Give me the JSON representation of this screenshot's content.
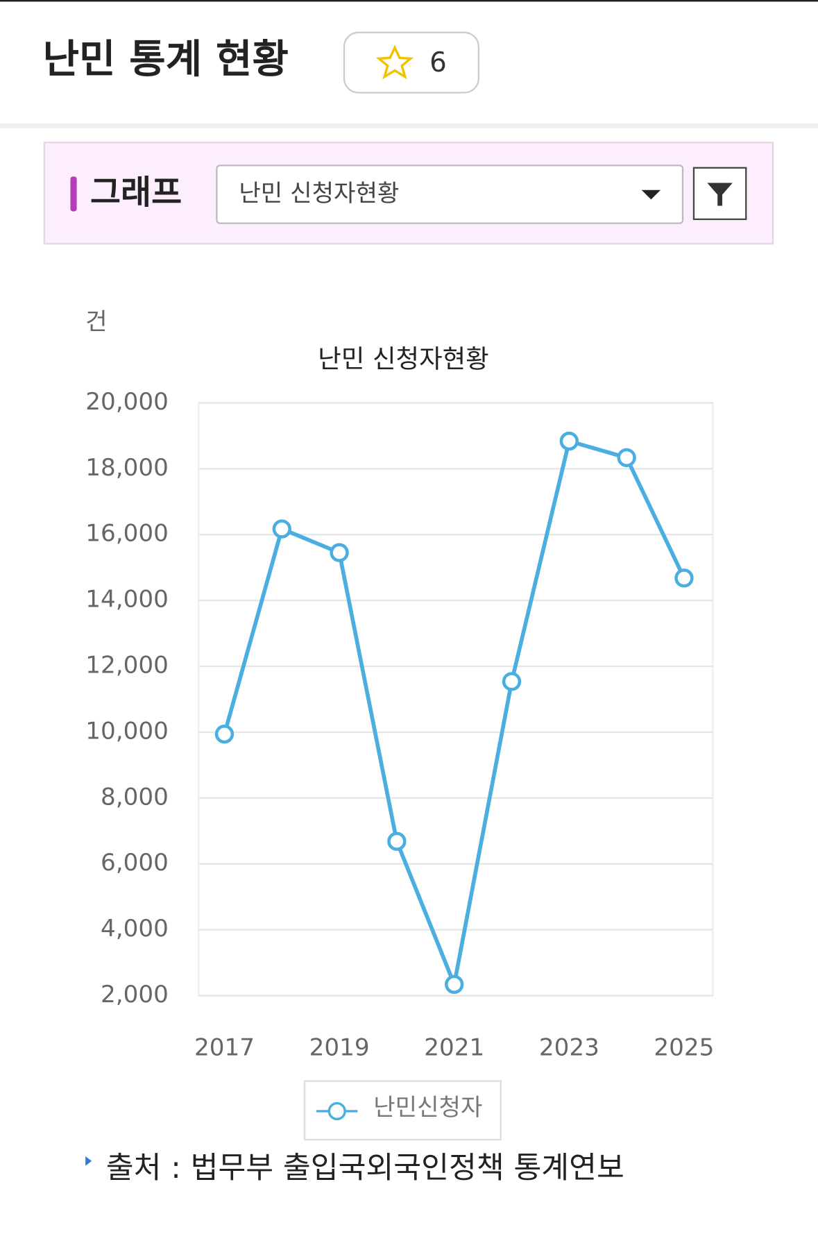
{
  "header": {
    "title": "난민 통계 현황",
    "favorite_count": "6"
  },
  "panel": {
    "label": "그래프",
    "dropdown": "난민 신청자현황"
  },
  "chart_data": {
    "type": "line",
    "unit": "건",
    "title": "난민 신청자현황",
    "x": [
      2017,
      2018,
      2019,
      2020,
      2021,
      2022,
      2023,
      2024,
      2025
    ],
    "series": [
      {
        "name": "난민신청자",
        "color": "#4aaee0",
        "values": [
          9942,
          16173,
          15452,
          6684,
          2341,
          11539,
          18838,
          18336,
          14680
        ]
      }
    ],
    "xlim": [
      2016.55,
      2025.5
    ],
    "xticks": [
      2017,
      2019,
      2021,
      2023,
      2025
    ],
    "ylim": [
      2000,
      20000
    ],
    "yticks": [
      {
        "value": 2000,
        "label": "2,000"
      },
      {
        "value": 4000,
        "label": "4,000"
      },
      {
        "value": 6000,
        "label": "6,000"
      },
      {
        "value": 8000,
        "label": "8,000"
      },
      {
        "value": 10000,
        "label": "10,000"
      },
      {
        "value": 12000,
        "label": "12,000"
      },
      {
        "value": 14000,
        "label": "14,000"
      },
      {
        "value": 16000,
        "label": "16,000"
      },
      {
        "value": 18000,
        "label": "18,000"
      },
      {
        "value": 20000,
        "label": "20,000"
      }
    ],
    "grid": true,
    "legend": "bottom"
  },
  "source": "출처 : 법무부 출입국외국인정책 통계연보"
}
